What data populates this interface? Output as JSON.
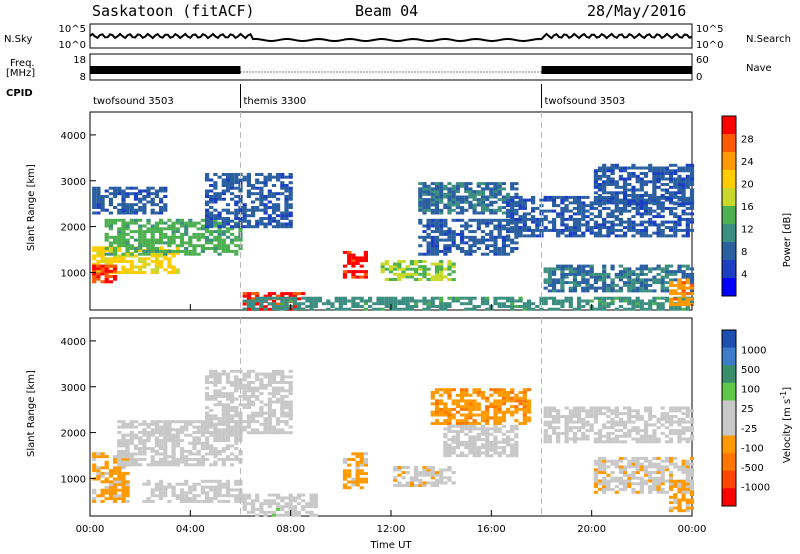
{
  "header": {
    "station": "Saskatoon (fitACF)",
    "beam": "Beam 04",
    "date": "28/May/2016"
  },
  "top_panels": {
    "nsky_label": "N.Sky",
    "nsky_ticks": [
      "10^5",
      "10^0"
    ],
    "nsearch_label": "N.Search",
    "nsearch_ticks": [
      "10^5",
      "10^0"
    ],
    "freq_label": "Freq.",
    "freq_units": "[MHz]",
    "freq_ticks": [
      "18",
      "8"
    ],
    "nave_label": "Nave",
    "nave_ticks": [
      "60",
      "0"
    ],
    "cpid_label": "CPID",
    "modes": [
      {
        "name": "twofsound 3503",
        "start": 0
      },
      {
        "name": "themis 3300",
        "start": 6
      },
      {
        "name": "twofsound 3503",
        "start": 18
      }
    ]
  },
  "colorbars": {
    "power": {
      "label": "Power [dB]",
      "ticks": [
        "28",
        "24",
        "20",
        "16",
        "12",
        "8",
        "4"
      ],
      "colors": [
        "#ff0000",
        "#ff5a00",
        "#ff9900",
        "#ffcc00",
        "#c8d92c",
        "#4caf50",
        "#3c8f80",
        "#2a5fa0",
        "#1a3fc0",
        "#0000ff"
      ]
    },
    "velocity": {
      "label": "Velocity [m s",
      "label_sup": "-1",
      "label_end": "]",
      "ticks": [
        "1000",
        "500",
        "100",
        "25",
        "-25",
        "-100",
        "-500",
        "-1000"
      ],
      "colors": [
        "#1f4fb0",
        "#3c7cc8",
        "#3a8f6a",
        "#5fc84a",
        "#c8c8c8",
        "#c8c8c8",
        "#ff9900",
        "#ff7700",
        "#ff4400",
        "#ff0000"
      ]
    }
  },
  "x_ticks": [
    "00:00",
    "04:00",
    "08:00",
    "12:00",
    "16:00",
    "20:00",
    "00:00"
  ],
  "x_title": "Time UT",
  "y_title": "Slant Range [km]",
  "y_ticks": [
    "4000",
    "3000",
    "2000",
    "1000"
  ],
  "chart_data": {
    "type": "heatmap",
    "x_unit": "hours UT",
    "x_range": [
      0,
      24
    ],
    "y_range_km": [
      180,
      4500
    ],
    "mode_changes": [
      6,
      18
    ],
    "panels": [
      {
        "name": "power",
        "color_range": [
          0,
          30
        ],
        "regions": [
          {
            "t0": 0.0,
            "t1": 3.5,
            "r0": 1000,
            "r1": 1600,
            "value": 18
          },
          {
            "t0": 0.0,
            "t1": 1.0,
            "r0": 800,
            "r1": 1200,
            "value": 26
          },
          {
            "t0": 0.5,
            "t1": 6.0,
            "r0": 1400,
            "r1": 2200,
            "value": 12
          },
          {
            "t0": 4.5,
            "t1": 8.0,
            "r0": 2000,
            "r1": 3200,
            "value": 6
          },
          {
            "t0": 0.0,
            "t1": 3.0,
            "r0": 2300,
            "r1": 2900,
            "value": 6
          },
          {
            "t0": 6.0,
            "t1": 8.5,
            "r0": 200,
            "r1": 600,
            "value": 27
          },
          {
            "t0": 6.0,
            "t1": 24.0,
            "r0": 200,
            "r1": 500,
            "value": 10
          },
          {
            "t0": 10.0,
            "t1": 11.0,
            "r0": 900,
            "r1": 1500,
            "value": 27
          },
          {
            "t0": 11.5,
            "t1": 14.5,
            "r0": 850,
            "r1": 1300,
            "value": 14
          },
          {
            "t0": 13.0,
            "t1": 17.0,
            "r0": 1400,
            "r1": 2200,
            "value": 6
          },
          {
            "t0": 13.0,
            "t1": 17.0,
            "r0": 2300,
            "r1": 3000,
            "value": 8
          },
          {
            "t0": 16.5,
            "t1": 24.0,
            "r0": 1800,
            "r1": 2700,
            "value": 6
          },
          {
            "t0": 18.0,
            "t1": 24.0,
            "r0": 600,
            "r1": 1200,
            "value": 8
          },
          {
            "t0": 20.0,
            "t1": 24.0,
            "r0": 2500,
            "r1": 3400,
            "value": 6
          },
          {
            "t0": 23.0,
            "t1": 24.0,
            "r0": 300,
            "r1": 900,
            "value": 22
          }
        ]
      },
      {
        "name": "velocity",
        "color_range": [
          -1000,
          1000
        ],
        "regions": [
          {
            "t0": 0.0,
            "t1": 1.5,
            "r0": 500,
            "r1": 1600,
            "value": -300
          },
          {
            "t0": 1.0,
            "t1": 6.0,
            "r0": 1300,
            "r1": 2300,
            "value": 0
          },
          {
            "t0": 4.5,
            "t1": 8.0,
            "r0": 2000,
            "r1": 3400,
            "value": 0
          },
          {
            "t0": 2.0,
            "t1": 6.0,
            "r0": 500,
            "r1": 1000,
            "value": -150
          },
          {
            "t0": 6.0,
            "t1": 9.0,
            "r0": 200,
            "r1": 700,
            "value": 60
          },
          {
            "t0": 10.0,
            "t1": 11.0,
            "r0": 800,
            "r1": 1600,
            "value": -300
          },
          {
            "t0": 12.0,
            "t1": 14.5,
            "r0": 850,
            "r1": 1300,
            "value": -200
          },
          {
            "t0": 13.5,
            "t1": 17.5,
            "r0": 2200,
            "r1": 3000,
            "value": -400
          },
          {
            "t0": 14.0,
            "t1": 17.0,
            "r0": 1500,
            "r1": 2200,
            "value": 0
          },
          {
            "t0": 18.0,
            "t1": 24.0,
            "r0": 1800,
            "r1": 2600,
            "value": 0
          },
          {
            "t0": 20.0,
            "t1": 24.0,
            "r0": 700,
            "r1": 1500,
            "value": -200
          },
          {
            "t0": 23.0,
            "t1": 24.0,
            "r0": 300,
            "r1": 1000,
            "value": -300
          }
        ]
      }
    ]
  }
}
